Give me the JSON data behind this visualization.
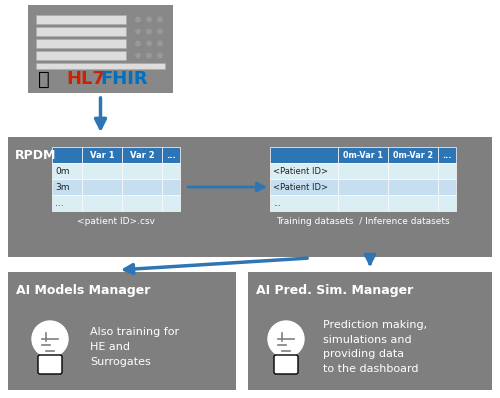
{
  "bg_color": "#ffffff",
  "box_gray": "#7f7f7f",
  "blue_header": "#2E75B6",
  "blue_cell_light": "#DAEEF3",
  "blue_cell_med": "#C5DFF0",
  "arrow_color": "#2E75B6",
  "hl7_red": "#CC2200",
  "fhir_blue": "#0070C0",
  "server_bg": "#888888",
  "server_bar_light": "#dddddd",
  "server_bar_border": "#aaaaaa",
  "rpdm_label": "RPDM",
  "left_table_headers": [
    "",
    "Var 1",
    "Var 2",
    "..."
  ],
  "left_table_rows": [
    "0m",
    "3m",
    "..."
  ],
  "right_table_headers": [
    "",
    "0m-Var 1",
    "0m-Var 2",
    "..."
  ],
  "right_table_rows": [
    "<Patient ID>",
    "<Patient ID>",
    "..."
  ],
  "left_label": "<patient ID>.csv",
  "right_label": "Training datasets  / Inference datasets",
  "box1_title": "AI Models Manager",
  "box1_text": "Also training for\nHE and\nSurrogates",
  "box2_title": "AI Pred. Sim. Manager",
  "box2_text": "Prediction making,\nsimulations and\nproviding data\nto the dashboard",
  "fig_w": 5.0,
  "fig_h": 3.98,
  "dpi": 100
}
